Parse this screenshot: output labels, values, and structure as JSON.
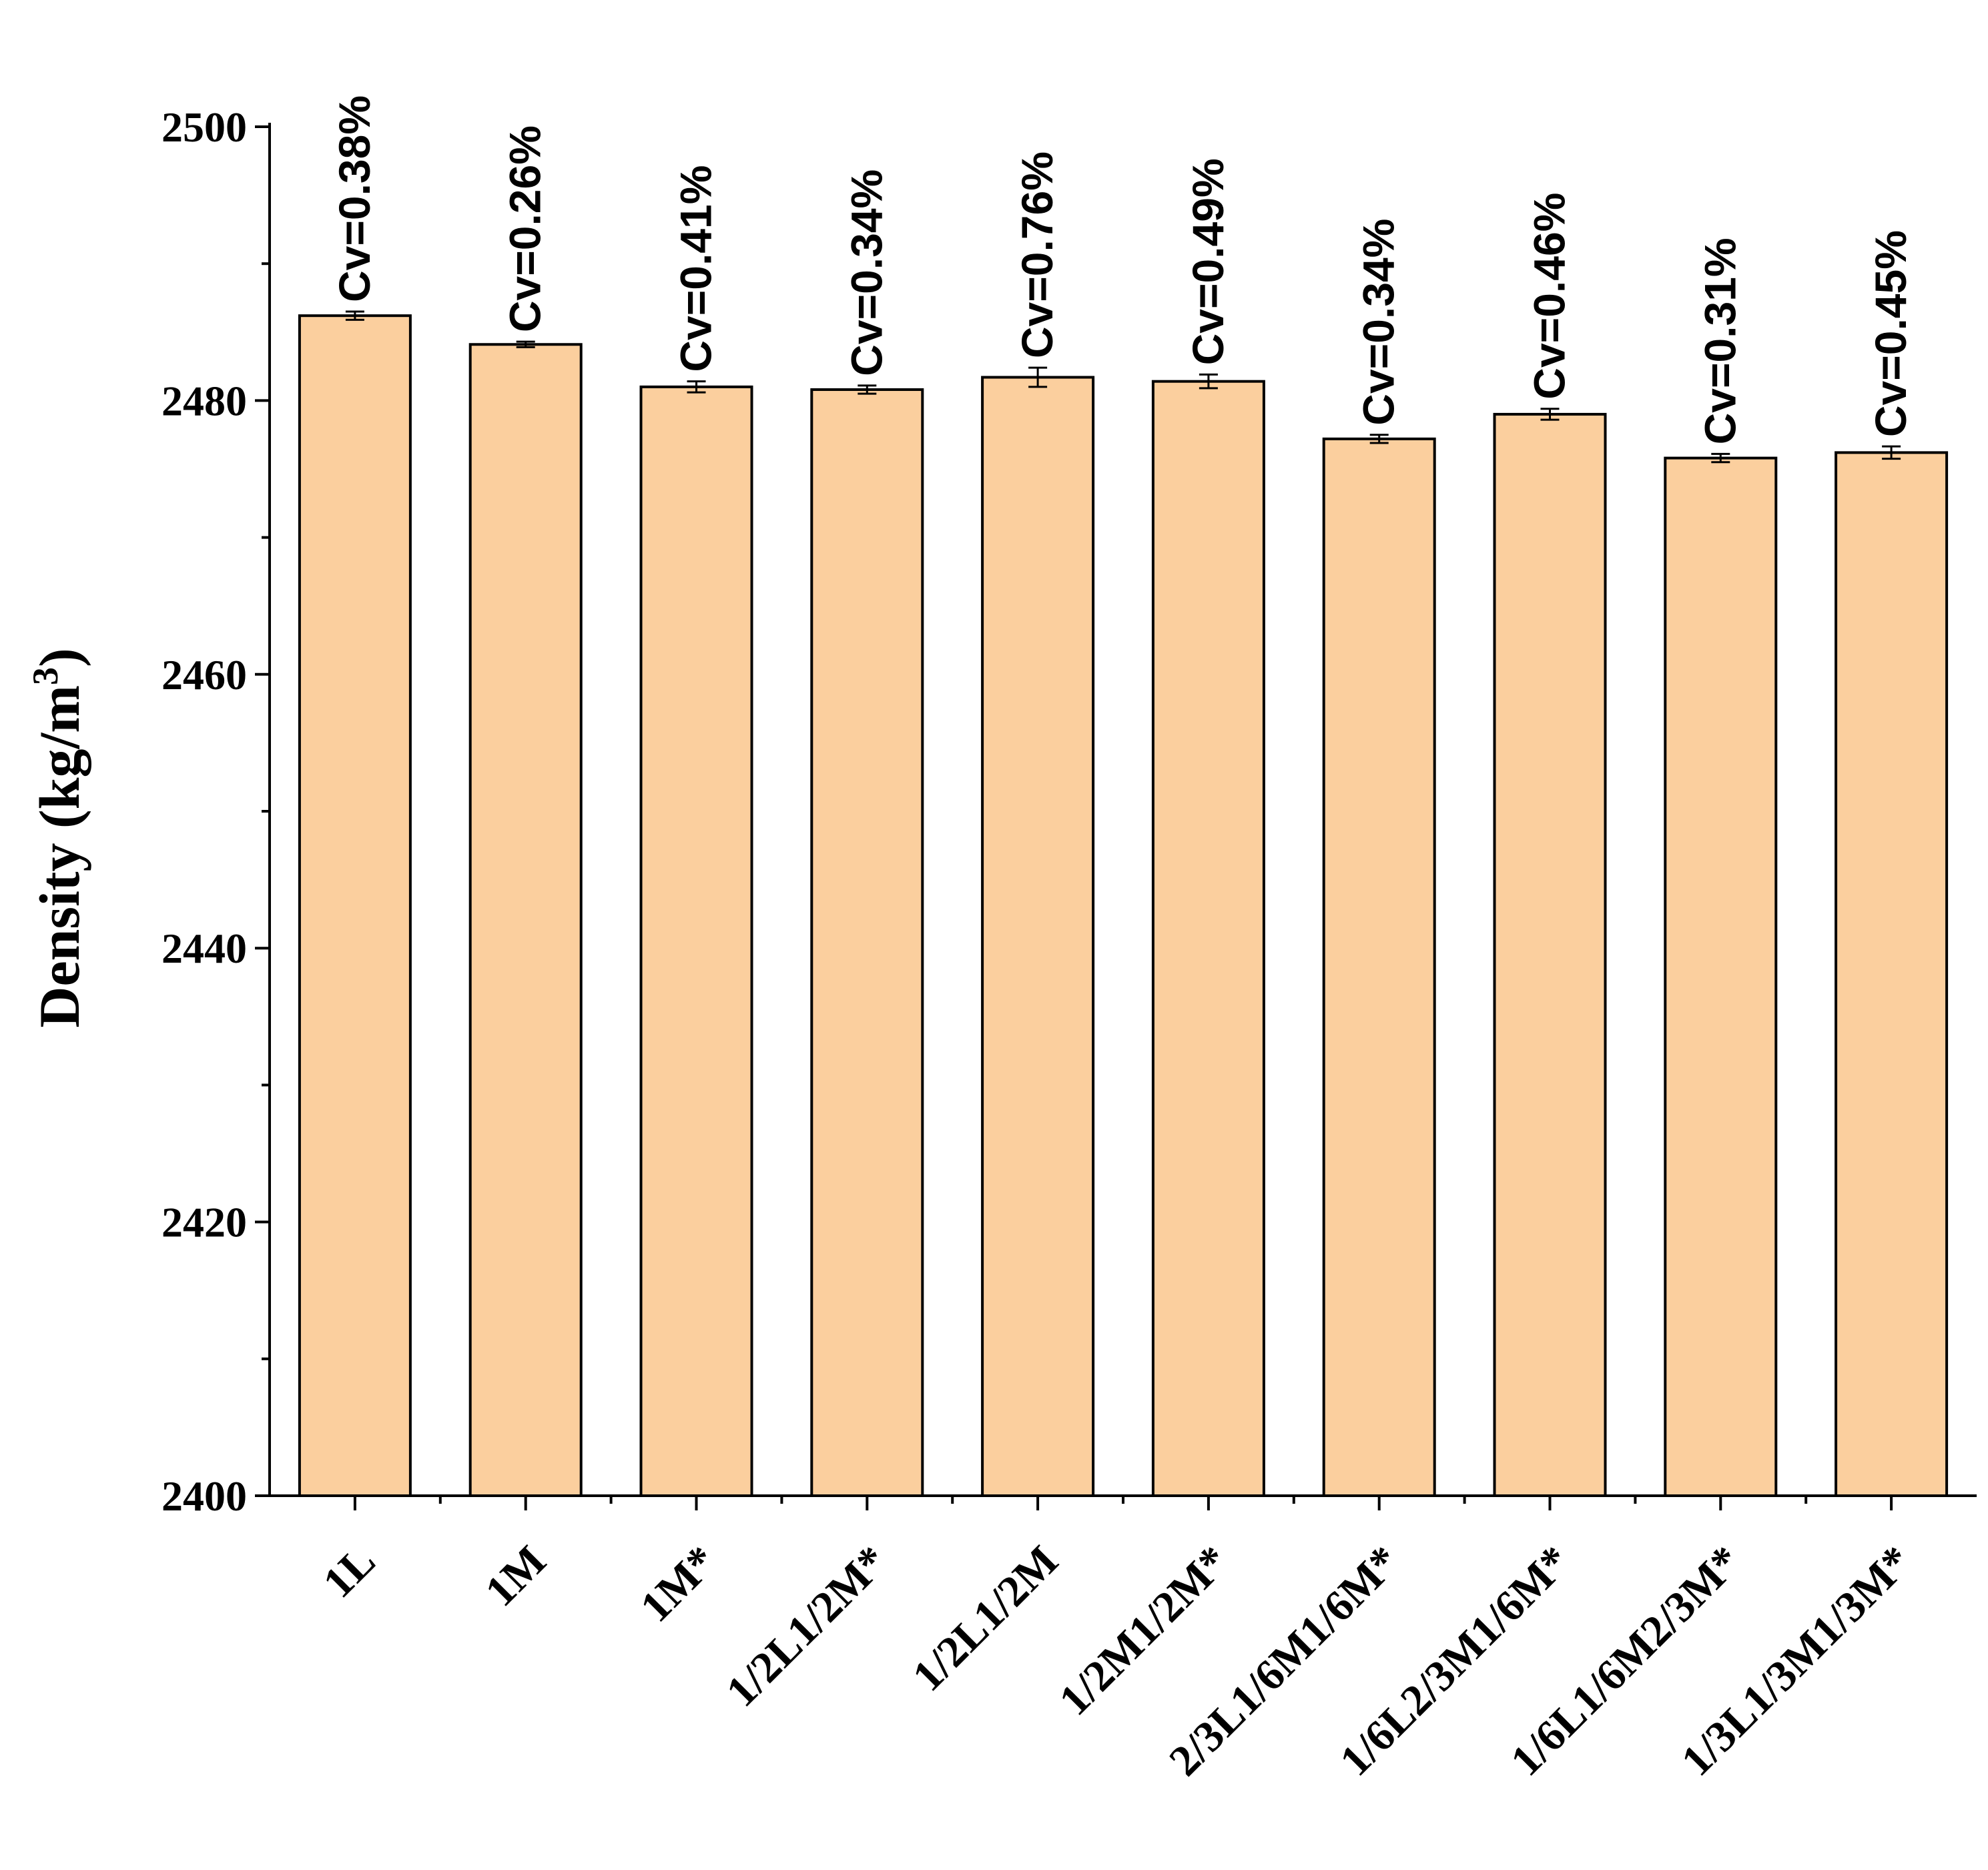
{
  "chart_data": {
    "type": "bar",
    "ylabel": "Density (kg/m",
    "ylabel_sup": "3",
    "ylabel_close": ")",
    "ylim": [
      2400,
      2500
    ],
    "yticks": [
      2400,
      2420,
      2440,
      2460,
      2480,
      2500
    ],
    "grid": false,
    "bar_color": "#FBCF9E",
    "categories": [
      "1L",
      "1M",
      "1M*",
      "1/2L1/2M*",
      "1/2L1/2M",
      "1/2M1/2M*",
      "2/3L1/6M1/6M*",
      "1/6L2/3M1/6M*",
      "1/6L1/6M2/3M*",
      "1/3L1/3M1/3M*"
    ],
    "values": [
      2486.2,
      2484.1,
      2481.0,
      2480.8,
      2481.7,
      2481.4,
      2477.2,
      2479.0,
      2475.8,
      2476.2
    ],
    "errors": [
      0.3,
      0.2,
      0.4,
      0.3,
      0.7,
      0.5,
      0.3,
      0.4,
      0.3,
      0.45
    ],
    "annotations": [
      "Cv=0.38%",
      "Cv=0.26%",
      "Cv=0.41%",
      "Cv=0.34%",
      "Cv=0.76%",
      "Cv=0.49%",
      "Cv=0.34%",
      "Cv=0.46%",
      "Cv=0.31%",
      "Cv=0.45%"
    ]
  }
}
